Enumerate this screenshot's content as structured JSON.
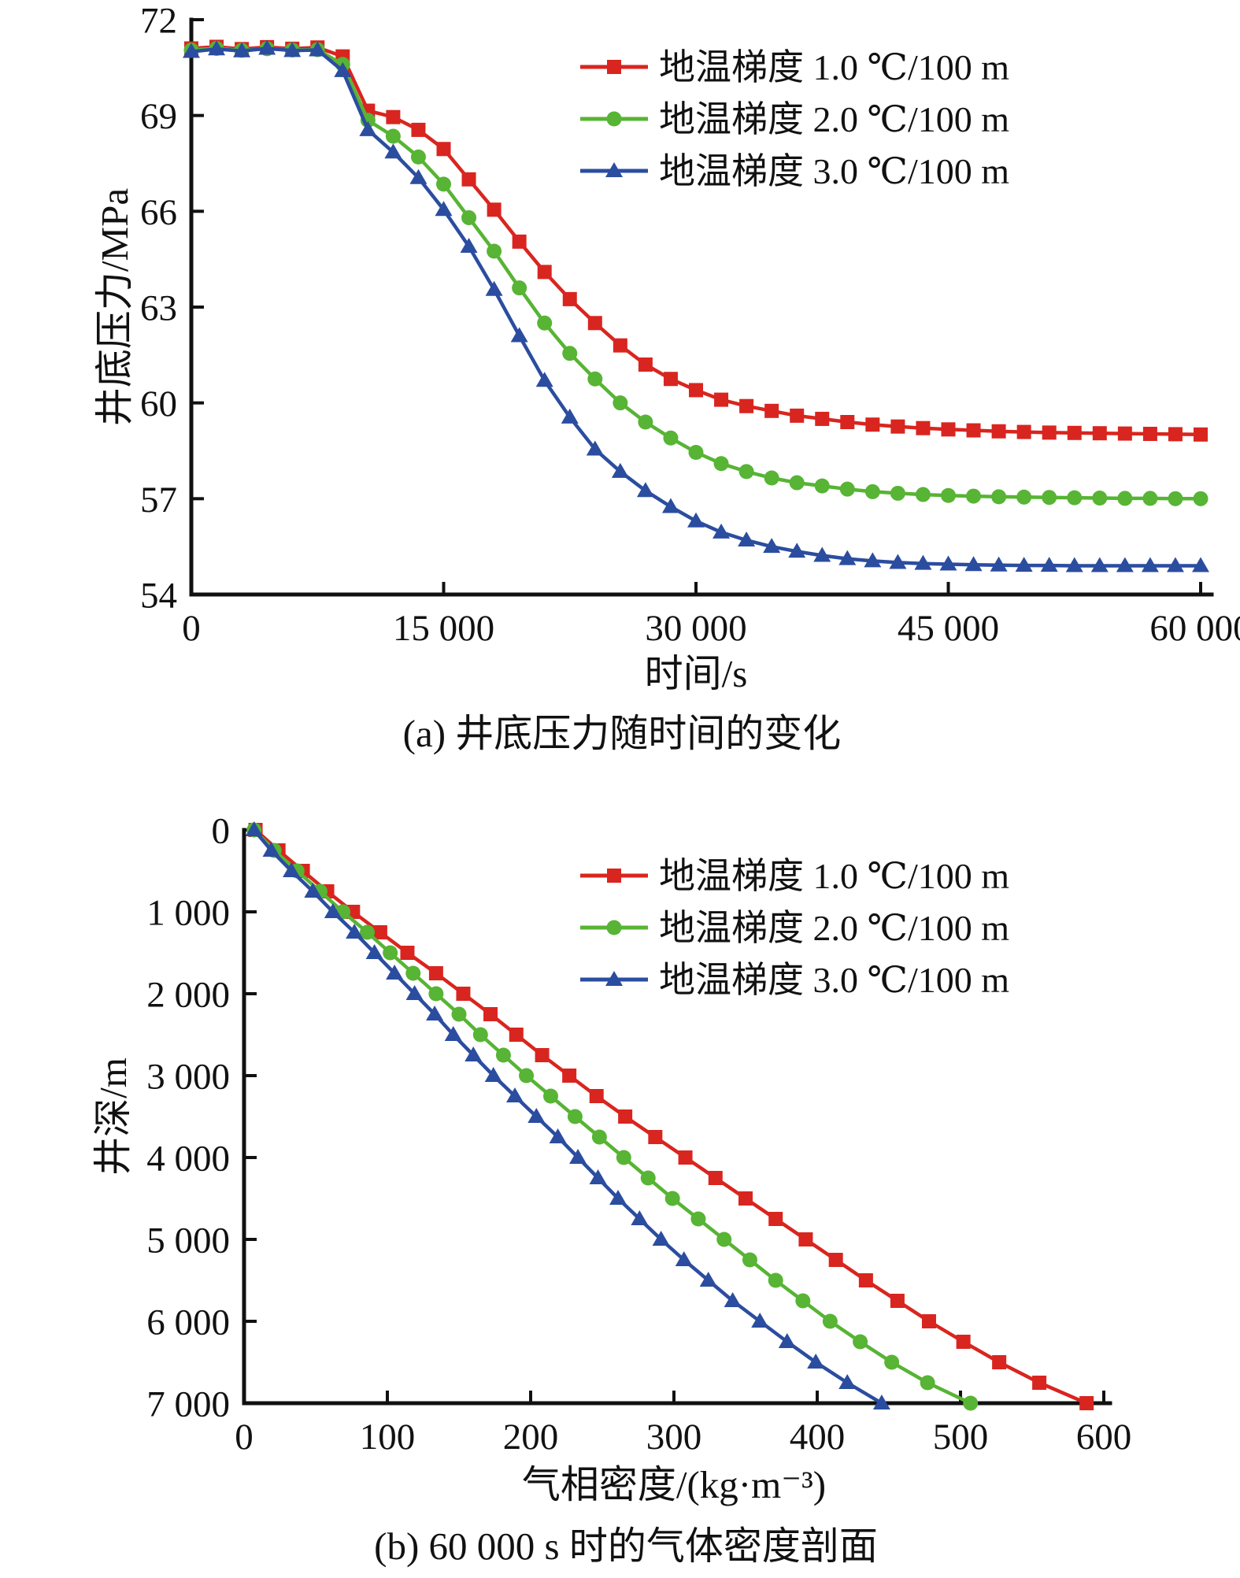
{
  "figure_title": "",
  "chart_data": [
    {
      "type": "line",
      "id": "a",
      "caption": "(a) 井底压力随时间的变化",
      "xlabel": "时间/s",
      "ylabel": "井底压力/MPa",
      "xlim": [
        0,
        60000
      ],
      "ylim": [
        54,
        72
      ],
      "y_inverted": false,
      "grid": false,
      "legend_position": "upper right",
      "x_ticks": {
        "values": [
          0,
          15000,
          30000,
          45000,
          60000
        ],
        "labels": [
          "0",
          "15 000",
          "30 000",
          "45 000",
          "60 000"
        ]
      },
      "y_ticks": {
        "values": [
          54,
          57,
          60,
          63,
          66,
          69,
          72
        ],
        "labels": [
          "54",
          "57",
          "60",
          "63",
          "66",
          "69",
          "72"
        ]
      },
      "legend": [
        {
          "label": "地温梯度 1.0 ℃/100 m",
          "color": "#d9251f",
          "marker": "square"
        },
        {
          "label": "地温梯度 2.0 ℃/100 m",
          "color": "#57b434",
          "marker": "circle"
        },
        {
          "label": "地温梯度 3.0 ℃/100 m",
          "color": "#2b4da0",
          "marker": "triangle"
        }
      ],
      "x_shared": [
        0,
        1500,
        3000,
        4500,
        6000,
        7500,
        9000,
        10500,
        12000,
        13500,
        15000,
        16500,
        18000,
        19500,
        21000,
        22500,
        24000,
        25500,
        27000,
        28500,
        30000,
        31500,
        33000,
        34500,
        36000,
        37500,
        39000,
        40500,
        42000,
        43500,
        45000,
        46500,
        48000,
        49500,
        51000,
        52500,
        54000,
        55500,
        57000,
        58500,
        60000
      ],
      "series": [
        {
          "name": "地温梯度 1.0 ℃/100 m",
          "color": "#d9251f",
          "marker": "square",
          "y": [
            71.1,
            71.15,
            71.08,
            71.14,
            71.09,
            71.13,
            70.85,
            69.15,
            68.95,
            68.55,
            67.95,
            67.0,
            66.05,
            65.05,
            64.1,
            63.25,
            62.5,
            61.8,
            61.2,
            60.75,
            60.4,
            60.1,
            59.9,
            59.75,
            59.6,
            59.5,
            59.4,
            59.32,
            59.26,
            59.21,
            59.17,
            59.14,
            59.11,
            59.09,
            59.07,
            59.06,
            59.05,
            59.04,
            59.03,
            59.02,
            59.01
          ]
        },
        {
          "name": "地温梯度 2.0 ℃/100 m",
          "color": "#57b434",
          "marker": "circle",
          "y": [
            71.05,
            71.1,
            71.04,
            71.09,
            71.05,
            71.06,
            70.6,
            68.85,
            68.35,
            67.7,
            66.85,
            65.8,
            64.75,
            63.6,
            62.5,
            61.55,
            60.75,
            60.0,
            59.4,
            58.9,
            58.45,
            58.1,
            57.85,
            57.65,
            57.5,
            57.4,
            57.3,
            57.22,
            57.17,
            57.13,
            57.1,
            57.08,
            57.06,
            57.05,
            57.04,
            57.03,
            57.02,
            57.01,
            57.01,
            57.0,
            57.0
          ]
        },
        {
          "name": "地温梯度 3.0 ℃/100 m",
          "color": "#2b4da0",
          "marker": "triangle",
          "y": [
            71.0,
            71.08,
            71.02,
            71.1,
            71.03,
            71.05,
            70.4,
            68.55,
            67.85,
            67.05,
            66.05,
            64.9,
            63.55,
            62.1,
            60.7,
            59.55,
            58.55,
            57.85,
            57.25,
            56.75,
            56.3,
            55.95,
            55.7,
            55.5,
            55.35,
            55.22,
            55.12,
            55.05,
            55.0,
            54.97,
            54.95,
            54.93,
            54.92,
            54.91,
            54.91,
            54.9,
            54.9,
            54.9,
            54.9,
            54.9,
            54.9
          ]
        }
      ]
    },
    {
      "type": "line",
      "id": "b",
      "caption": "(b) 60 000 s 时的气体密度剖面",
      "xlabel": "气相密度/(kg·m⁻³)",
      "ylabel": "井深/m",
      "xlim": [
        0,
        600
      ],
      "ylim": [
        0,
        7000
      ],
      "y_inverted": true,
      "grid": false,
      "legend_position": "upper right",
      "x_ticks": {
        "values": [
          0,
          100,
          200,
          300,
          400,
          500,
          600
        ],
        "labels": [
          "0",
          "100",
          "200",
          "300",
          "400",
          "500",
          "600"
        ]
      },
      "y_ticks": {
        "values": [
          0,
          1000,
          2000,
          3000,
          4000,
          5000,
          6000,
          7000
        ],
        "labels": [
          "0",
          "1 000",
          "2 000",
          "3 000",
          "4 000",
          "5 000",
          "6 000",
          "7 000"
        ]
      },
      "legend": [
        {
          "label": "地温梯度 1.0 ℃/100 m",
          "color": "#d9251f",
          "marker": "square"
        },
        {
          "label": "地温梯度 2.0 ℃/100 m",
          "color": "#57b434",
          "marker": "circle"
        },
        {
          "label": "地温梯度 3.0 ℃/100 m",
          "color": "#2b4da0",
          "marker": "triangle"
        }
      ],
      "y_shared_depth": [
        0,
        250,
        500,
        750,
        1000,
        1250,
        1500,
        1750,
        2000,
        2250,
        2500,
        2750,
        3000,
        3250,
        3500,
        3750,
        4000,
        4250,
        4500,
        4750,
        5000,
        5250,
        5500,
        5750,
        6000,
        6250,
        6500,
        6750,
        7000
      ],
      "series": [
        {
          "name": "地温梯度 1.0 ℃/100 m",
          "color": "#d9251f",
          "marker": "square",
          "x": [
            8,
            24,
            41,
            58,
            76,
            95,
            114,
            134,
            153,
            172,
            190,
            208,
            227,
            246,
            266,
            287,
            308,
            329,
            350,
            371,
            392,
            413,
            434,
            456,
            478,
            502,
            527,
            555,
            588
          ]
        },
        {
          "name": "地温梯度 2.0 ℃/100 m",
          "color": "#57b434",
          "marker": "circle",
          "x": [
            7,
            21,
            37,
            53,
            69,
            86,
            102,
            118,
            134,
            150,
            165,
            181,
            197,
            214,
            231,
            248,
            265,
            282,
            299,
            317,
            335,
            353,
            371,
            390,
            409,
            430,
            452,
            477,
            507
          ]
        },
        {
          "name": "地温梯度 3.0 ℃/100 m",
          "color": "#2b4da0",
          "marker": "triangle",
          "x": [
            7,
            19,
            33,
            48,
            62,
            77,
            91,
            105,
            119,
            133,
            146,
            160,
            174,
            189,
            204,
            219,
            233,
            247,
            261,
            276,
            291,
            307,
            324,
            341,
            360,
            379,
            399,
            421,
            445
          ]
        }
      ]
    }
  ]
}
